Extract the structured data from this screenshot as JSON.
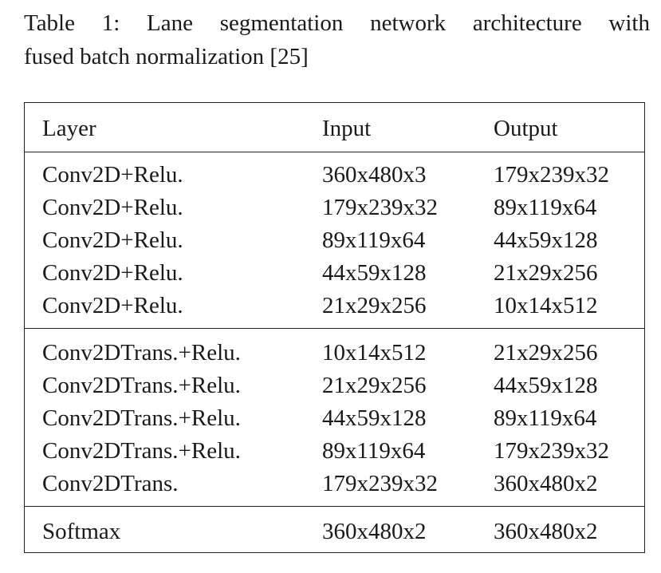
{
  "caption": {
    "line1": "Table 1: Lane segmentation network architecture with",
    "line2": "fused batch normalization [25]"
  },
  "table": {
    "headers": {
      "layer": "Layer",
      "input": "Input",
      "output": "Output"
    },
    "groups": [
      [
        {
          "layer": "Conv2D+Relu.",
          "input": "360x480x3",
          "output": "179x239x32"
        },
        {
          "layer": "Conv2D+Relu.",
          "input": "179x239x32",
          "output": "89x119x64"
        },
        {
          "layer": "Conv2D+Relu.",
          "input": "89x119x64",
          "output": "44x59x128"
        },
        {
          "layer": "Conv2D+Relu.",
          "input": "44x59x128",
          "output": "21x29x256"
        },
        {
          "layer": "Conv2D+Relu.",
          "input": "21x29x256",
          "output": "10x14x512"
        }
      ],
      [
        {
          "layer": "Conv2DTrans.+Relu.",
          "input": "10x14x512",
          "output": "21x29x256"
        },
        {
          "layer": "Conv2DTrans.+Relu.",
          "input": "21x29x256",
          "output": "44x59x128"
        },
        {
          "layer": "Conv2DTrans.+Relu.",
          "input": "44x59x128",
          "output": "89x119x64"
        },
        {
          "layer": "Conv2DTrans.+Relu.",
          "input": "89x119x64",
          "output": "179x239x32"
        },
        {
          "layer": "Conv2DTrans.",
          "input": "179x239x32",
          "output": "360x480x2"
        }
      ],
      [
        {
          "layer": "Softmax",
          "input": "360x480x2",
          "output": "360x480x2"
        }
      ]
    ]
  }
}
